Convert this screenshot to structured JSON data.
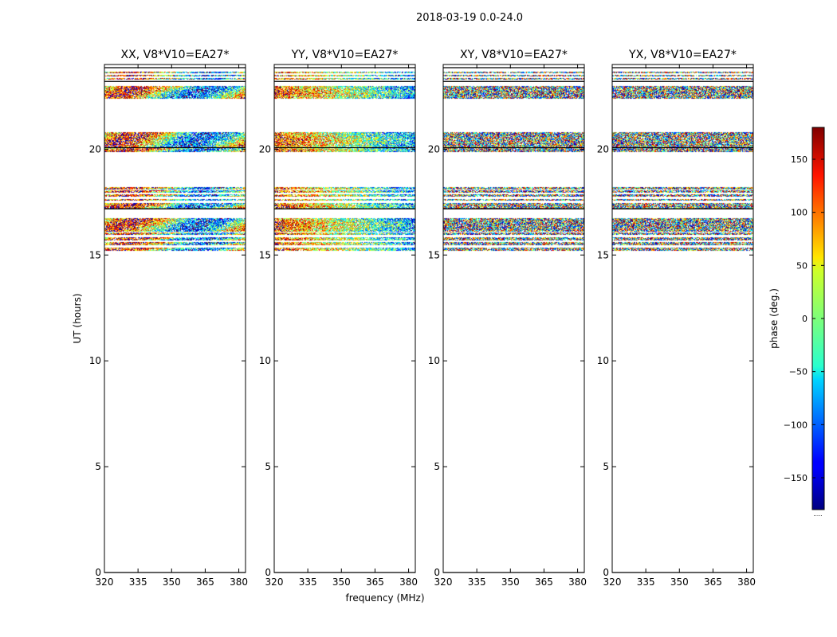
{
  "chart_data": {
    "type": "heatmap",
    "title": "2018-03-19 0.0-24.0",
    "xlabel": "frequency (MHz)",
    "ylabel": "UT (hours)",
    "xlim": [
      320,
      383
    ],
    "ylim": [
      0,
      24
    ],
    "xticks": [
      "320",
      "335",
      "350",
      "365",
      "380"
    ],
    "xtick_values": [
      320,
      335,
      350,
      365,
      380
    ],
    "yticks": [
      "0",
      "5",
      "10",
      "15",
      "20"
    ],
    "ytick_values": [
      0,
      5,
      10,
      15,
      20
    ],
    "panels": [
      {
        "title": "XX, V8*V10=EA27*",
        "pattern": "gradient-x"
      },
      {
        "title": "YY, V8*V10=EA27*",
        "pattern": "gradient-y"
      },
      {
        "title": "XY, V8*V10=EA27*",
        "pattern": "noise"
      },
      {
        "title": "YX, V8*V10=EA27*",
        "pattern": "noise"
      }
    ],
    "data_bands_hours": [
      [
        15.2,
        15.35
      ],
      [
        15.45,
        15.6
      ],
      [
        15.7,
        15.85
      ],
      [
        15.95,
        16.05
      ],
      [
        16.1,
        16.75
      ],
      [
        17.2,
        17.45
      ],
      [
        17.55,
        17.65
      ],
      [
        17.75,
        17.85
      ],
      [
        17.95,
        18.05
      ],
      [
        18.1,
        18.2
      ],
      [
        19.85,
        20.05
      ],
      [
        20.1,
        20.8
      ],
      [
        22.4,
        23.0
      ],
      [
        23.3,
        23.35
      ],
      [
        23.45,
        23.5
      ],
      [
        23.6,
        23.65
      ]
    ],
    "black_lines_hours": [
      23.2,
      23.85,
      20.07,
      17.18,
      0.0
    ],
    "colorbar": {
      "label": "phase (deg.)",
      "ticks": [
        "150",
        "100",
        "50",
        "0",
        "−50",
        "−100",
        "−150"
      ],
      "tick_values": [
        150,
        100,
        50,
        0,
        -50,
        -100,
        -150
      ],
      "range": [
        -180,
        180
      ],
      "colormap": "jet",
      "bottom_text": "....."
    },
    "colors": {
      "axis": "#000000",
      "background": "#ffffff"
    }
  }
}
